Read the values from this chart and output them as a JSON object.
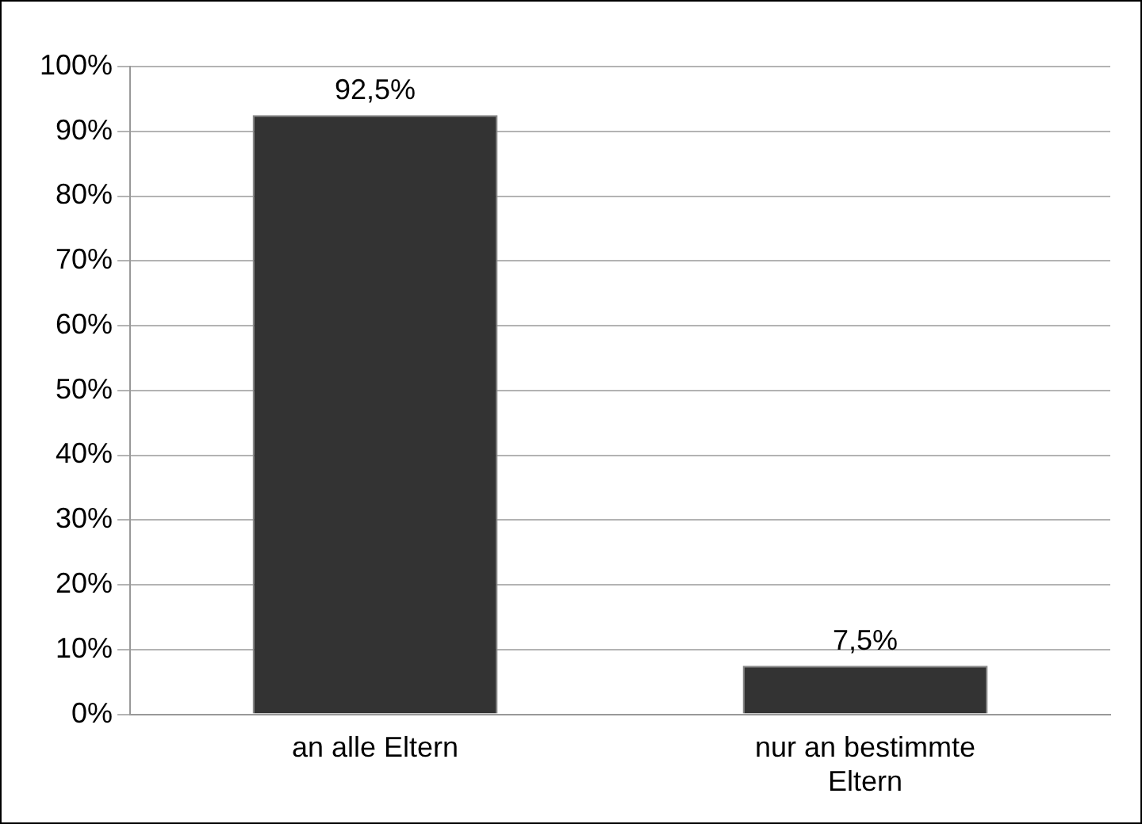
{
  "chart_data": {
    "type": "bar",
    "categories": [
      "an alle Eltern",
      "nur an bestimmte Eltern"
    ],
    "values": [
      92.5,
      7.5
    ],
    "color": "#333333",
    "value_labels": [
      "92,5%",
      "7,5%"
    ],
    "ylim": [
      0,
      100
    ],
    "yticks": [
      {
        "value": 0,
        "label": "0%"
      },
      {
        "value": 10,
        "label": "10%"
      },
      {
        "value": 20,
        "label": "20%"
      },
      {
        "value": 30,
        "label": "30%"
      },
      {
        "value": 40,
        "label": "40%"
      },
      {
        "value": 50,
        "label": "50%"
      },
      {
        "value": 60,
        "label": "60%"
      },
      {
        "value": 70,
        "label": "70%"
      },
      {
        "value": 80,
        "label": "80%"
      },
      {
        "value": 90,
        "label": "90%"
      },
      {
        "value": 100,
        "label": "100%"
      }
    ],
    "grid": "y",
    "legend": false
  }
}
